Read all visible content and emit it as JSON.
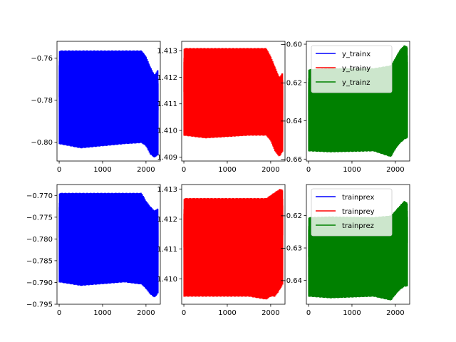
{
  "figure": {
    "background": "#ffffff"
  },
  "chart_data": [
    {
      "type": "line",
      "panel": "top-left",
      "xlim": [
        -50,
        2330
      ],
      "ylim": [
        -0.809,
        -0.752
      ],
      "xticks": [
        0,
        1000,
        2000
      ],
      "xtick_labels": [
        "0",
        "1000",
        "2000"
      ],
      "yticks": [
        -0.8,
        -0.78,
        -0.76
      ],
      "ytick_labels": [
        "−0.80",
        "−0.78",
        "−0.76"
      ],
      "legend": null,
      "series": [
        {
          "color": "#0000ff",
          "n": 2300,
          "envelope": {
            "x": [
              0,
              500,
              1500,
              1900,
              2000,
              2100,
              2200,
              2280
            ],
            "upper": [
              -0.7563,
              -0.7563,
              -0.7563,
              -0.7563,
              -0.759,
              -0.764,
              -0.768,
              -0.765
            ],
            "lower": [
              -0.801,
              -0.803,
              -0.801,
              -0.8005,
              -0.802,
              -0.806,
              -0.8075,
              -0.806
            ]
          }
        }
      ]
    },
    {
      "type": "line",
      "panel": "top-middle",
      "xlim": [
        -50,
        2330
      ],
      "ylim": [
        1.40885,
        1.41335
      ],
      "xticks": [
        0,
        1000,
        2000
      ],
      "xtick_labels": [
        "0",
        "1000",
        "2000"
      ],
      "yticks": [
        1.409,
        1.41,
        1.411,
        1.412,
        1.413
      ],
      "ytick_labels": [
        "1.409",
        "1.410",
        "1.411",
        "1.412",
        "1.413"
      ],
      "legend": null,
      "series": [
        {
          "color": "#ff0000",
          "n": 2300,
          "envelope": {
            "x": [
              0,
              500,
              1500,
              1900,
              2000,
              2100,
              2200,
              2280
            ],
            "upper": [
              1.4131,
              1.4131,
              1.4131,
              1.4131,
              1.4128,
              1.4124,
              1.412,
              1.4122
            ],
            "lower": [
              1.4098,
              1.4097,
              1.4098,
              1.4098,
              1.4096,
              1.4092,
              1.409,
              1.4092
            ]
          }
        }
      ]
    },
    {
      "type": "line",
      "panel": "top-right",
      "xlim": [
        -50,
        2330
      ],
      "ylim": [
        -0.661,
        -0.5985
      ],
      "xticks": [
        0,
        1000,
        2000
      ],
      "xtick_labels": [
        "0",
        "1000",
        "2000"
      ],
      "yticks": [
        -0.66,
        -0.64,
        -0.62,
        -0.6
      ],
      "ytick_labels": [
        "−0.66",
        "−0.64",
        "−0.62",
        "−0.60"
      ],
      "legend": {
        "loc": "upper-left",
        "entries": [
          {
            "label": "y_trainx",
            "color": "#0000ff"
          },
          {
            "label": "y_trainy",
            "color": "#ff0000"
          },
          {
            "label": "y_trainz",
            "color": "#008000"
          }
        ]
      },
      "series": [
        {
          "color": "#008000",
          "n": 2300,
          "envelope": {
            "x": [
              0,
              500,
              1500,
              1900,
              2000,
              2100,
              2200,
              2280
            ],
            "upper": [
              -0.613,
              -0.6125,
              -0.6125,
              -0.611,
              -0.607,
              -0.603,
              -0.6005,
              -0.601
            ],
            "lower": [
              -0.656,
              -0.6565,
              -0.656,
              -0.659,
              -0.655,
              -0.652,
              -0.65,
              -0.649
            ]
          }
        }
      ]
    },
    {
      "type": "line",
      "panel": "bottom-left",
      "xlim": [
        -50,
        2330
      ],
      "ylim": [
        -0.795,
        -0.7675
      ],
      "xticks": [
        0,
        1000,
        2000
      ],
      "xtick_labels": [
        "0",
        "1000",
        "2000"
      ],
      "yticks": [
        -0.795,
        -0.79,
        -0.785,
        -0.78,
        -0.775,
        -0.77
      ],
      "ytick_labels": [
        "−0.795",
        "−0.790",
        "−0.785",
        "−0.780",
        "−0.775",
        "−0.770"
      ],
      "legend": null,
      "series": [
        {
          "color": "#0000ff",
          "n": 2300,
          "envelope": {
            "x": [
              0,
              500,
              1500,
              1900,
              2000,
              2100,
              2200,
              2280
            ],
            "upper": [
              -0.7694,
              -0.7694,
              -0.7694,
              -0.7694,
              -0.7712,
              -0.7725,
              -0.7735,
              -0.7728
            ],
            "lower": [
              -0.79,
              -0.7908,
              -0.79,
              -0.7905,
              -0.7915,
              -0.7928,
              -0.7935,
              -0.7925
            ]
          }
        }
      ]
    },
    {
      "type": "line",
      "panel": "bottom-middle",
      "xlim": [
        -50,
        2330
      ],
      "ylim": [
        1.40915,
        1.41315
      ],
      "xticks": [
        0,
        1000,
        2000
      ],
      "xtick_labels": [
        "0",
        "1000",
        "2000"
      ],
      "yticks": [
        1.41,
        1.411,
        1.412,
        1.413
      ],
      "ytick_labels": [
        "1.410",
        "1.411",
        "1.412",
        "1.413"
      ],
      "legend": null,
      "series": [
        {
          "color": "#ff0000",
          "n": 2300,
          "envelope": {
            "x": [
              0,
              500,
              1500,
              1900,
              2000,
              2100,
              2200,
              2280
            ],
            "upper": [
              1.4127,
              1.4127,
              1.4127,
              1.4127,
              1.4128,
              1.4129,
              1.413,
              1.413
            ],
            "lower": [
              1.4094,
              1.4094,
              1.4094,
              1.4093,
              1.4094,
              1.4094,
              1.4096,
              1.4098
            ]
          }
        }
      ]
    },
    {
      "type": "line",
      "panel": "bottom-right",
      "xlim": [
        -50,
        2330
      ],
      "ylim": [
        -0.6473,
        -0.6105
      ],
      "xticks": [
        0,
        1000,
        2000
      ],
      "xtick_labels": [
        "0",
        "1000",
        "2000"
      ],
      "yticks": [
        -0.64,
        -0.63,
        -0.62
      ],
      "ytick_labels": [
        "−0.64",
        "−0.63",
        "−0.62"
      ],
      "legend": {
        "loc": "upper-left",
        "entries": [
          {
            "label": "trainprex",
            "color": "#0000ff"
          },
          {
            "label": "trainprey",
            "color": "#ff0000"
          },
          {
            "label": "trainprez",
            "color": "#008000"
          }
        ]
      },
      "series": [
        {
          "color": "#008000",
          "n": 2300,
          "envelope": {
            "x": [
              0,
              500,
              1500,
              1900,
              2000,
              2100,
              2200,
              2280
            ],
            "upper": [
              -0.6205,
              -0.6203,
              -0.6205,
              -0.62,
              -0.6185,
              -0.617,
              -0.6155,
              -0.616
            ],
            "lower": [
              -0.645,
              -0.6455,
              -0.645,
              -0.6462,
              -0.6445,
              -0.643,
              -0.642,
              -0.6418
            ]
          }
        }
      ]
    }
  ]
}
